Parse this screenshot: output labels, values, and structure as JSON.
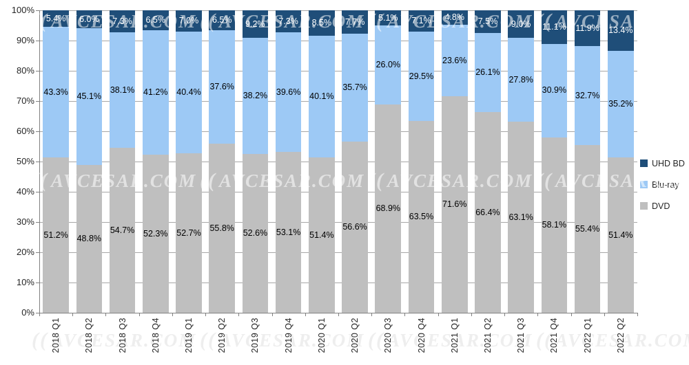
{
  "chart_data": {
    "type": "bar",
    "stacked": true,
    "percent_stacked": true,
    "grid": true,
    "legend_position": "right",
    "categories": [
      "2018 Q1",
      "2018 Q2",
      "2018 Q3",
      "2018 Q4",
      "2019 Q1",
      "2019 Q2",
      "2019 Q3",
      "2019 Q4",
      "2020 Q1",
      "2020 Q2",
      "2020 Q3",
      "2020 Q4",
      "2021 Q1",
      "2021 Q2",
      "2021 Q3",
      "2021 Q4",
      "2022 Q1",
      "2022 Q2"
    ],
    "series": [
      {
        "name": "UHD BD",
        "color": "#1F4E79",
        "label_color": "#FFFFFF",
        "values": [
          5.4,
          6.0,
          7.3,
          6.5,
          7.0,
          6.5,
          9.2,
          7.3,
          8.5,
          7.7,
          5.1,
          7.1,
          4.8,
          7.5,
          9.0,
          11.1,
          11.9,
          13.4
        ]
      },
      {
        "name": "Blu-ray",
        "color": "#9DC9F5",
        "label_color": "#000000",
        "values": [
          43.3,
          45.1,
          38.1,
          41.2,
          40.4,
          37.6,
          38.2,
          39.6,
          40.1,
          35.7,
          26.0,
          29.5,
          23.6,
          26.1,
          27.8,
          30.9,
          32.7,
          35.2
        ]
      },
      {
        "name": "DVD",
        "color": "#BFBFBF",
        "label_color": "#000000",
        "values": [
          51.2,
          48.8,
          54.7,
          52.3,
          52.7,
          55.8,
          52.6,
          53.1,
          51.4,
          56.6,
          68.9,
          63.5,
          71.6,
          66.4,
          63.1,
          58.1,
          55.4,
          51.4
        ]
      }
    ],
    "y_axis": {
      "min": 0,
      "max": 100,
      "step": 10,
      "tick_labels": [
        "0%",
        "10%",
        "20%",
        "30%",
        "40%",
        "50%",
        "60%",
        "70%",
        "80%",
        "90%",
        "100%"
      ]
    },
    "label_format": "0.0%"
  },
  "watermark": {
    "prefix": "((",
    "text": "AVCESAR.COM"
  },
  "colors": {
    "gridline": "#A6A6A6",
    "axis": "#808080",
    "text": "#262626",
    "background": "#FFFFFF"
  }
}
